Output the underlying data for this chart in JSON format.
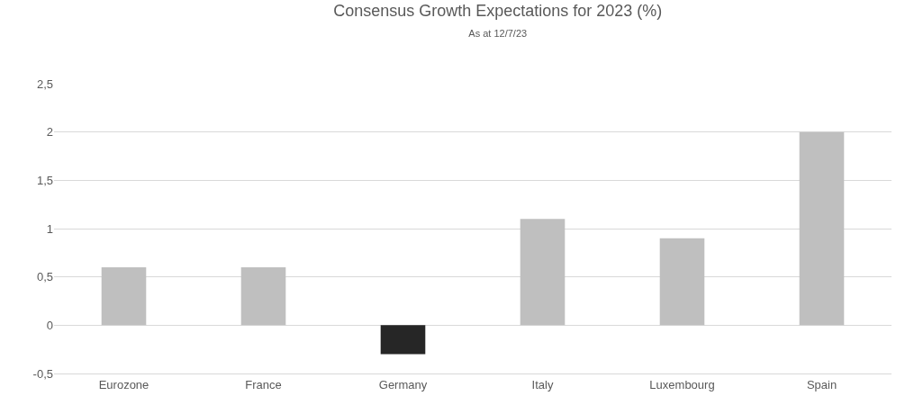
{
  "chart_data": {
    "type": "bar",
    "title": "Consensus Growth Expectations for 2023 (%)",
    "subtitle": "As at 12/7/23",
    "categories": [
      "Eurozone",
      "France",
      "Germany",
      "Italy",
      "Luxembourg",
      "Spain"
    ],
    "values": [
      0.6,
      0.6,
      -0.3,
      1.1,
      0.9,
      2.0
    ],
    "colors": [
      "#bfbfbf",
      "#bfbfbf",
      "#262626",
      "#bfbfbf",
      "#bfbfbf",
      "#bfbfbf"
    ],
    "ylim": [
      -0.5,
      2.5
    ],
    "yticks": [
      {
        "value": -0.5,
        "label": "-0,5"
      },
      0,
      {
        "value": 0.5,
        "label": "0,5"
      },
      1,
      {
        "value": 1.5,
        "label": "1,5"
      },
      2,
      {
        "value": 2.5,
        "label": "2,5"
      }
    ],
    "grid": "y"
  }
}
